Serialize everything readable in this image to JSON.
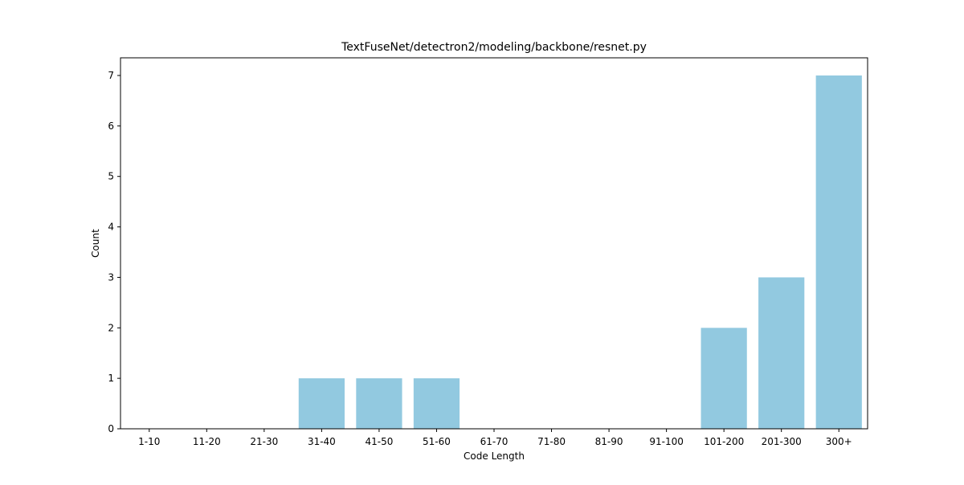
{
  "chart_data": {
    "type": "bar",
    "title": "TextFuseNet/detectron2/modeling/backbone/resnet.py",
    "xlabel": "Code Length",
    "ylabel": "Count",
    "categories": [
      "1-10",
      "11-20",
      "21-30",
      "31-40",
      "41-50",
      "51-60",
      "61-70",
      "71-80",
      "81-90",
      "91-100",
      "101-200",
      "201-300",
      "300+"
    ],
    "values": [
      0,
      0,
      0,
      1,
      1,
      1,
      0,
      0,
      0,
      0,
      2,
      3,
      7
    ],
    "yticks": [
      0,
      1,
      2,
      3,
      4,
      5,
      6,
      7
    ],
    "ylim": [
      0,
      7.35
    ],
    "grid": false,
    "bar_color": "#92c9e0"
  }
}
